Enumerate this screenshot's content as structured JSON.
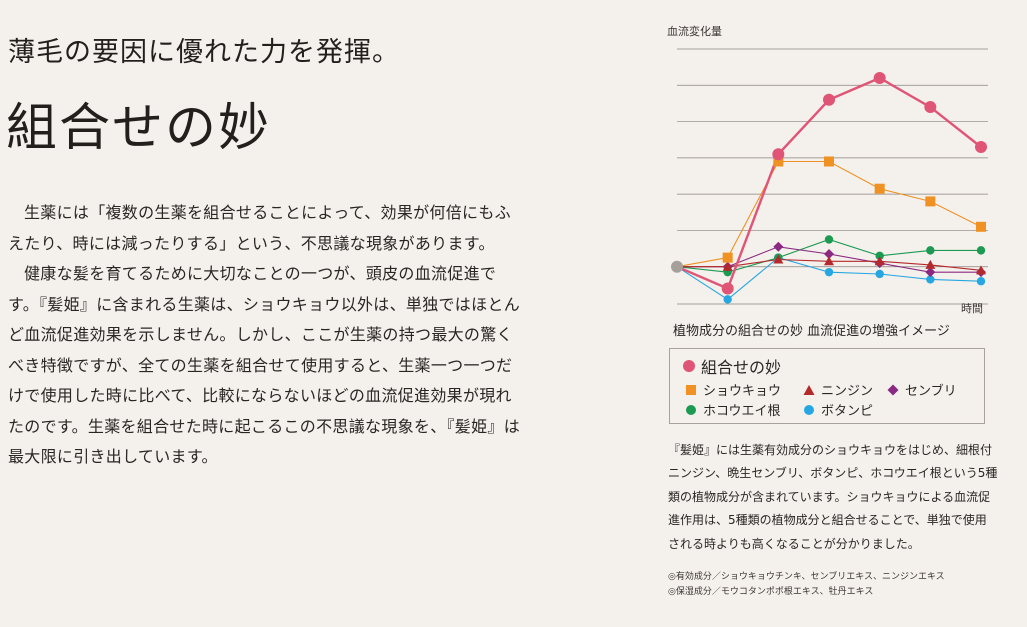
{
  "heading": {
    "subtitle": "薄毛の要因に優れた力を発揮。",
    "title": "組合せの妙"
  },
  "body": {
    "paragraphs": [
      "生薬には「複数の生薬を組合せることによって、効果が何倍にもふえたり、時には減ったりする」という、不思議な現象があります。",
      "健康な髪を育てるために大切なことの一つが、頭皮の血流促進です。『髪姫』に含まれる生薬は、ショウキョウ以外は、単独ではほとんど血流促進効果を示しません。しかし、ここが生薬の持つ最大の驚くべき特徴ですが、全ての生薬を組合せて使用すると、生薬一つ一つだけで使用した時に比べて、比較にならないほどの血流促進効果が現れたのです。生薬を組合せた時に起こるこの不思議な現象を、『髪姫』は最大限に引き出しています。"
    ]
  },
  "chart_data": {
    "type": "line",
    "title": "",
    "caption": "植物成分の組合せの妙 血流促進の増強イメージ",
    "ylabel": "血流変化量",
    "xlabel": "時間",
    "x": [
      0,
      1,
      2,
      3,
      4,
      5,
      6
    ],
    "ylim": [
      -10,
      60
    ],
    "grid": true,
    "series": [
      {
        "name": "組合せの妙",
        "marker": "circle",
        "color": "#e05476",
        "values": [
          0,
          -6,
          31,
          46,
          52,
          44,
          33
        ]
      },
      {
        "name": "ショウキョウ",
        "marker": "square",
        "color": "#ef9223",
        "values": [
          0,
          2.5,
          29,
          29,
          21.5,
          18,
          11
        ]
      },
      {
        "name": "ニンジン",
        "marker": "triangle",
        "color": "#b42a2a",
        "values": [
          0,
          0,
          2,
          1.5,
          1.5,
          0.5,
          -1
        ]
      },
      {
        "name": "センブリ",
        "marker": "diamond",
        "color": "#8b2a82",
        "values": [
          0,
          0,
          5.5,
          3.5,
          1,
          -1.5,
          -1.5
        ]
      },
      {
        "name": "ホコウエイ根",
        "marker": "circle",
        "color": "#1c9a52",
        "values": [
          0,
          -1.5,
          2.5,
          7.5,
          3,
          4.5,
          4.5
        ]
      },
      {
        "name": "ボタンピ",
        "marker": "circle",
        "color": "#27a7e2",
        "values": [
          0,
          -9,
          2.5,
          -1.5,
          -2,
          -3.5,
          -4
        ]
      }
    ]
  },
  "note": {
    "text": "『髪姫』には生薬有効成分のショウキョウをはじめ、細根付ニンジン、晩生センブリ、ボタンピ、ホコウエイ根という5種類の植物成分が含まれています。ショウキョウによる血流促進作用は、5種類の植物成分と組合せることで、単独で使用される時よりも高くなることが分かりました。",
    "footnotes": [
      "◎有効成分／ショウキョウチンキ、センブリエキス、ニンジンエキス",
      "◎保湿成分／モウコタンポポ根エキス、牡丹エキス"
    ]
  }
}
